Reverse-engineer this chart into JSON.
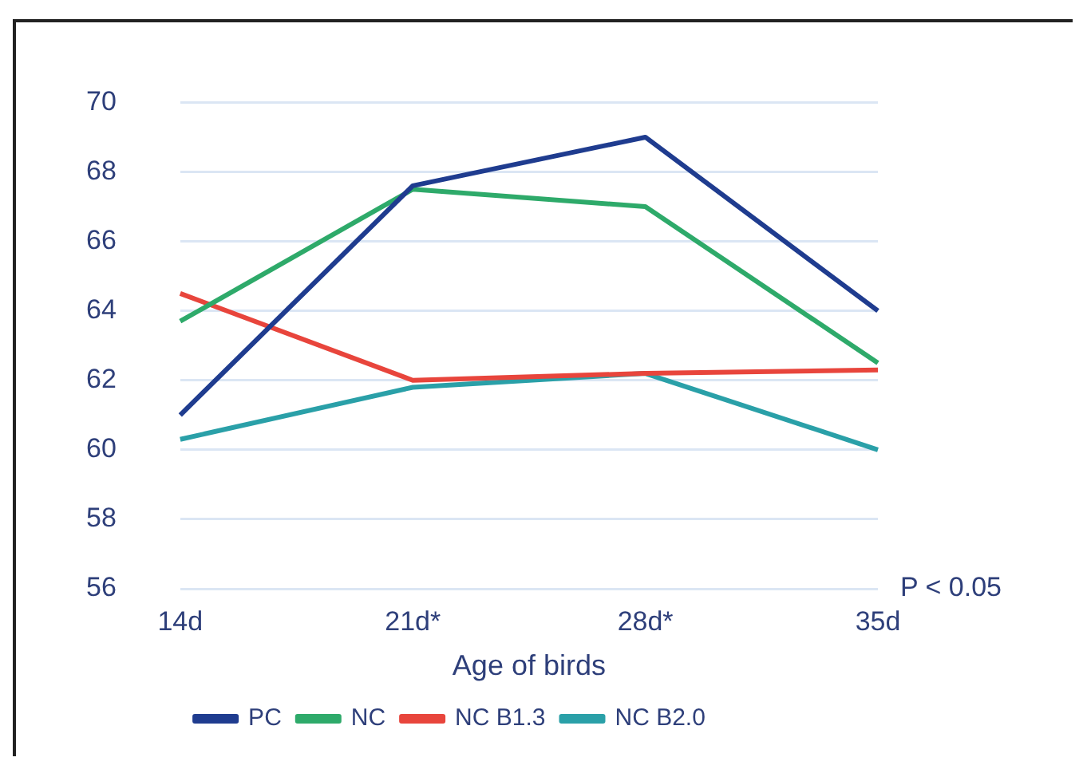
{
  "chart_data": {
    "type": "line",
    "xlabel": "Age of birds",
    "categories": [
      "14d",
      "21d*",
      "28d*",
      "35d"
    ],
    "series": [
      {
        "name": "PC",
        "color": "#1f3c8f",
        "values": [
          61,
          67.6,
          69,
          64
        ]
      },
      {
        "name": "NC",
        "color": "#2eaa6a",
        "values": [
          63.7,
          67.5,
          67,
          62.5
        ]
      },
      {
        "name": "NC B1.3",
        "color": "#e8453c",
        "values": [
          64.5,
          62,
          62.2,
          62.3
        ]
      },
      {
        "name": "NC B2.0",
        "color": "#2aa0a8",
        "values": [
          60.3,
          61.8,
          62.2,
          60
        ]
      }
    ],
    "ylim": [
      56,
      70
    ],
    "yticks": [
      56,
      58,
      60,
      62,
      64,
      66,
      68,
      70
    ],
    "grid": "y",
    "legend": "bottom",
    "marker": "none",
    "line_style": "solid",
    "annotations": [
      "P < 0.05"
    ]
  }
}
